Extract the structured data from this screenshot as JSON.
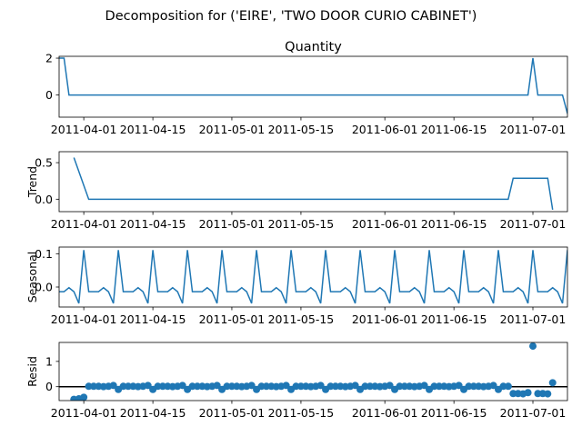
{
  "figure": {
    "suptitle": "Decomposition for ('EIRE', 'TWO DOOR CURIO CABINET')",
    "line_color": "#1f77b4"
  },
  "chart_data": [
    {
      "type": "line",
      "title": "Quantity",
      "ylabel": "",
      "xlim": [
        "2011-03-27",
        "2011-07-08"
      ],
      "ylim": [
        -1.2,
        2.1
      ],
      "yticks": [
        0,
        2
      ],
      "xticks": [
        "2011-04-01",
        "2011-04-15",
        "2011-05-01",
        "2011-05-15",
        "2011-06-01",
        "2011-06-15",
        "2011-07-01"
      ],
      "x": [
        "2011-03-27",
        "2011-03-28",
        "2011-03-29",
        "2011-06-30",
        "2011-07-01",
        "2011-07-02",
        "2011-07-07",
        "2011-07-08"
      ],
      "y": [
        2,
        2,
        0,
        0,
        2,
        0,
        0,
        -1
      ]
    },
    {
      "type": "line",
      "title": "",
      "ylabel": "Trend",
      "xlim": [
        "2011-03-27",
        "2011-07-08"
      ],
      "ylim": [
        -0.17,
        0.65
      ],
      "yticks": [
        0.0,
        0.5
      ],
      "xticks": [
        "2011-04-01",
        "2011-04-15",
        "2011-05-01",
        "2011-05-15",
        "2011-06-01",
        "2011-06-15",
        "2011-07-01"
      ],
      "x": [
        "2011-03-30",
        "2011-04-02",
        "2011-06-26",
        "2011-06-27",
        "2011-07-04",
        "2011-07-05"
      ],
      "y": [
        0.57,
        0.0,
        0.0,
        0.286,
        0.286,
        -0.143
      ]
    },
    {
      "type": "line",
      "title": "",
      "ylabel": "Seasonal",
      "xlim": [
        "2011-03-27",
        "2011-07-08"
      ],
      "ylim": [
        -0.06,
        0.12
      ],
      "yticks": [
        0.0,
        0.1
      ],
      "xticks": [
        "2011-04-01",
        "2011-04-15",
        "2011-05-01",
        "2011-05-15",
        "2011-06-01",
        "2011-06-15",
        "2011-07-01"
      ],
      "period": 7,
      "pattern": [
        0.111,
        -0.014,
        -0.014,
        -0.014,
        -0.002,
        -0.014,
        -0.049
      ],
      "pattern_start": "2011-04-01"
    },
    {
      "type": "scatter",
      "title": "",
      "ylabel": "Resid",
      "xlim": [
        "2011-03-27",
        "2011-07-08"
      ],
      "ylim": [
        -0.55,
        1.75
      ],
      "yticks": [
        0,
        1
      ],
      "xticks": [
        "2011-04-01",
        "2011-04-15",
        "2011-05-01",
        "2011-05-15",
        "2011-06-01",
        "2011-06-15",
        "2011-07-01"
      ],
      "baseline": 0,
      "x": [
        "2011-03-30",
        "2011-03-31",
        "2011-04-01",
        "2011-04-02",
        "2011-04-03",
        "2011-04-04",
        "2011-04-05",
        "2011-04-06",
        "2011-04-07",
        "2011-04-08",
        "2011-04-09",
        "2011-04-10",
        "2011-04-11",
        "2011-04-12",
        "2011-04-13",
        "2011-04-14",
        "2011-04-15",
        "2011-04-16",
        "2011-04-17",
        "2011-04-18",
        "2011-04-19",
        "2011-04-20",
        "2011-04-21",
        "2011-04-22",
        "2011-04-23",
        "2011-04-24",
        "2011-04-25",
        "2011-04-26",
        "2011-04-27",
        "2011-04-28",
        "2011-04-29",
        "2011-04-30",
        "2011-05-01",
        "2011-05-02",
        "2011-05-03",
        "2011-05-04",
        "2011-05-05",
        "2011-05-06",
        "2011-05-07",
        "2011-05-08",
        "2011-05-09",
        "2011-05-10",
        "2011-05-11",
        "2011-05-12",
        "2011-05-13",
        "2011-05-14",
        "2011-05-15",
        "2011-05-16",
        "2011-05-17",
        "2011-05-18",
        "2011-05-19",
        "2011-05-20",
        "2011-05-21",
        "2011-05-22",
        "2011-05-23",
        "2011-05-24",
        "2011-05-25",
        "2011-05-26",
        "2011-05-27",
        "2011-05-28",
        "2011-05-29",
        "2011-05-30",
        "2011-05-31",
        "2011-06-01",
        "2011-06-02",
        "2011-06-03",
        "2011-06-04",
        "2011-06-05",
        "2011-06-06",
        "2011-06-07",
        "2011-06-08",
        "2011-06-09",
        "2011-06-10",
        "2011-06-11",
        "2011-06-12",
        "2011-06-13",
        "2011-06-14",
        "2011-06-15",
        "2011-06-16",
        "2011-06-17",
        "2011-06-18",
        "2011-06-19",
        "2011-06-20",
        "2011-06-21",
        "2011-06-22",
        "2011-06-23",
        "2011-06-24",
        "2011-06-25",
        "2011-06-26",
        "2011-06-27",
        "2011-06-28",
        "2011-06-29",
        "2011-06-30",
        "2011-07-01",
        "2011-07-02",
        "2011-07-03",
        "2011-07-04",
        "2011-07-05"
      ],
      "y": [
        -0.5,
        -0.48,
        -0.42,
        0.014,
        0.014,
        0.014,
        0.002,
        0.014,
        0.049,
        -0.111,
        0.014,
        0.014,
        0.014,
        0.002,
        0.014,
        0.049,
        -0.111,
        0.014,
        0.014,
        0.014,
        0.002,
        0.014,
        0.049,
        -0.111,
        0.014,
        0.014,
        0.014,
        0.002,
        0.014,
        0.049,
        -0.111,
        0.014,
        0.014,
        0.014,
        0.002,
        0.014,
        0.049,
        -0.111,
        0.014,
        0.014,
        0.014,
        0.002,
        0.014,
        0.049,
        -0.111,
        0.014,
        0.014,
        0.014,
        0.002,
        0.014,
        0.049,
        -0.111,
        0.014,
        0.014,
        0.014,
        0.002,
        0.014,
        0.049,
        -0.111,
        0.014,
        0.014,
        0.014,
        0.002,
        0.014,
        0.049,
        -0.111,
        0.014,
        0.014,
        0.014,
        0.002,
        0.014,
        0.049,
        -0.111,
        0.014,
        0.014,
        0.014,
        0.002,
        0.014,
        0.049,
        -0.111,
        0.014,
        0.014,
        0.014,
        0.002,
        0.014,
        0.049,
        -0.111,
        0.014,
        0.014,
        -0.272,
        -0.272,
        -0.284,
        -0.235,
        1.603,
        -0.272,
        -0.272,
        -0.284,
        0.157
      ]
    }
  ]
}
